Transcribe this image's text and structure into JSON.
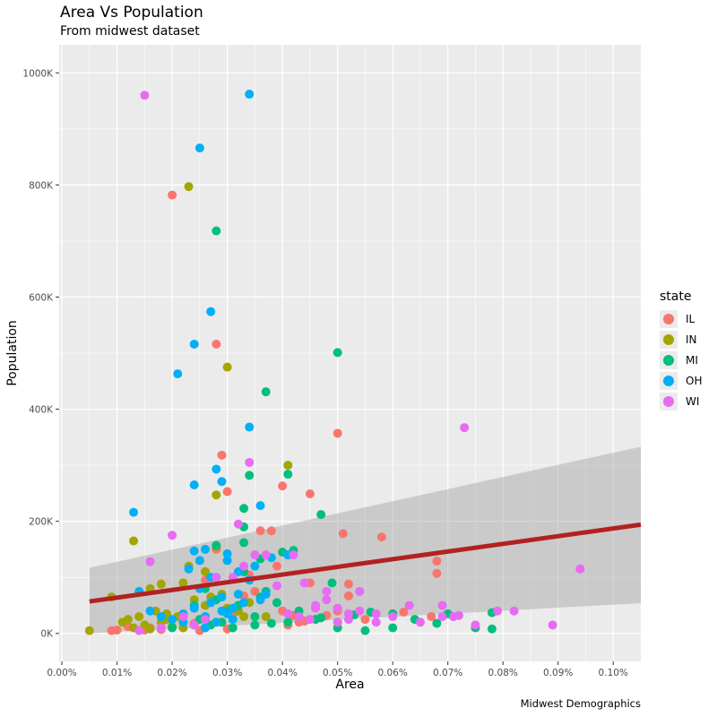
{
  "chart_data": {
    "type": "scatter",
    "title": "Area Vs Population",
    "subtitle": "From midwest dataset",
    "caption": "Midwest Demographics",
    "xlabel": "Area",
    "ylabel": "Population",
    "xlim": [
      -0.0005,
      0.105
    ],
    "ylim": [
      -50000,
      1050000
    ],
    "x_ticks": [
      0,
      0.01,
      0.02,
      0.03,
      0.04,
      0.05,
      0.06,
      0.07,
      0.08,
      0.09,
      0.1
    ],
    "x_tick_labels": [
      "0.00%",
      "0.01%",
      "0.02%",
      "0.03%",
      "0.04%",
      "0.05%",
      "0.06%",
      "0.07%",
      "0.08%",
      "0.09%",
      "0.10%"
    ],
    "y_ticks": [
      0,
      200000,
      400000,
      600000,
      800000,
      1000000
    ],
    "y_tick_labels": [
      "0K",
      "200K",
      "400K",
      "600K",
      "800K",
      "1000K"
    ],
    "grid": true,
    "legend": {
      "title": "state",
      "position": "right",
      "entries": [
        {
          "name": "IL",
          "color": "#F8766D"
        },
        {
          "name": "IN",
          "color": "#A3A500"
        },
        {
          "name": "MI",
          "color": "#00BF7D"
        },
        {
          "name": "OH",
          "color": "#00B0F6"
        },
        {
          "name": "WI",
          "color": "#E76BF3"
        }
      ]
    },
    "smooth": {
      "method": "linear",
      "color": "#B22222",
      "band_color": "#999999",
      "x": [
        0.005,
        0.105
      ],
      "y": [
        57000,
        194000
      ],
      "band_lower": [
        0,
        54000
      ],
      "band_upper": [
        117000,
        333000
      ]
    },
    "series": [
      {
        "name": "IL",
        "x": [
          0.02,
          0.028,
          0.05,
          0.029,
          0.045,
          0.04,
          0.051,
          0.058,
          0.036,
          0.038,
          0.068,
          0.068,
          0.03,
          0.052,
          0.052,
          0.042,
          0.026,
          0.028,
          0.034,
          0.039,
          0.035,
          0.033,
          0.04,
          0.048,
          0.067,
          0.062,
          0.022,
          0.03,
          0.025,
          0.044,
          0.046,
          0.047,
          0.016,
          0.01,
          0.009,
          0.018,
          0.012,
          0.015,
          0.031,
          0.036,
          0.045,
          0.024,
          0.041,
          0.043,
          0.055,
          0.05
        ],
        "y": [
          782000,
          516000,
          357000,
          318000,
          249000,
          263000,
          178000,
          172000,
          183000,
          183000,
          129000,
          107000,
          253000,
          88000,
          67000,
          32000,
          95000,
          150000,
          104000,
          120000,
          75000,
          67000,
          40000,
          32000,
          30000,
          38000,
          20000,
          8000,
          5000,
          22000,
          25000,
          28000,
          10000,
          6000,
          5000,
          7000,
          12000,
          6000,
          35000,
          60000,
          90000,
          18000,
          15000,
          20000,
          25000,
          40000
        ]
      },
      {
        "name": "IN",
        "x": [
          0.023,
          0.03,
          0.041,
          0.028,
          0.013,
          0.028,
          0.025,
          0.023,
          0.026,
          0.022,
          0.018,
          0.016,
          0.009,
          0.011,
          0.012,
          0.005,
          0.014,
          0.017,
          0.019,
          0.021,
          0.024,
          0.027,
          0.03,
          0.032,
          0.034,
          0.037,
          0.022,
          0.02,
          0.018,
          0.015,
          0.013,
          0.016,
          0.019,
          0.026,
          0.029,
          0.033
        ],
        "y": [
          797000,
          475000,
          300000,
          247000,
          165000,
          155000,
          130000,
          120000,
          110000,
          90000,
          88000,
          80000,
          65000,
          20000,
          25000,
          5000,
          30000,
          40000,
          35000,
          30000,
          60000,
          65000,
          45000,
          40000,
          55000,
          30000,
          10000,
          12000,
          20000,
          15000,
          10000,
          8000,
          25000,
          50000,
          70000,
          30000
        ]
      },
      {
        "name": "MI",
        "x": [
          0.034,
          0.041,
          0.047,
          0.028,
          0.033,
          0.05,
          0.037,
          0.028,
          0.033,
          0.033,
          0.036,
          0.04,
          0.042,
          0.049,
          0.068,
          0.075,
          0.078,
          0.078,
          0.07,
          0.064,
          0.06,
          0.056,
          0.053,
          0.05,
          0.046,
          0.041,
          0.038,
          0.035,
          0.031,
          0.028,
          0.026,
          0.024,
          0.022,
          0.02,
          0.06,
          0.055,
          0.05,
          0.047,
          0.043,
          0.039,
          0.036,
          0.032,
          0.029,
          0.027,
          0.033,
          0.037,
          0.025,
          0.03,
          0.035
        ],
        "y": [
          282000,
          284000,
          212000,
          718000,
          223000,
          501000,
          431000,
          157000,
          190000,
          162000,
          133000,
          145000,
          148000,
          90000,
          18000,
          10000,
          8000,
          37000,
          35000,
          25000,
          10000,
          38000,
          33000,
          10000,
          25000,
          20000,
          18000,
          15000,
          10000,
          60000,
          80000,
          50000,
          30000,
          10000,
          35000,
          5000,
          20000,
          28000,
          40000,
          55000,
          65000,
          50000,
          20000,
          15000,
          110000,
          75000,
          25000,
          40000,
          30000
        ]
      },
      {
        "name": "OH",
        "x": [
          0.034,
          0.025,
          0.027,
          0.024,
          0.021,
          0.034,
          0.036,
          0.028,
          0.029,
          0.024,
          0.013,
          0.024,
          0.026,
          0.023,
          0.025,
          0.03,
          0.032,
          0.035,
          0.038,
          0.041,
          0.014,
          0.016,
          0.018,
          0.02,
          0.022,
          0.027,
          0.029,
          0.031,
          0.034,
          0.037,
          0.024,
          0.026,
          0.028,
          0.03,
          0.025,
          0.032,
          0.027,
          0.022,
          0.024,
          0.029,
          0.033,
          0.036,
          0.026,
          0.031,
          0.03
        ],
        "y": [
          962000,
          866000,
          574000,
          516000,
          463000,
          368000,
          228000,
          293000,
          271000,
          265000,
          216000,
          147000,
          150000,
          115000,
          130000,
          142000,
          110000,
          120000,
          135000,
          140000,
          75000,
          40000,
          30000,
          25000,
          35000,
          55000,
          65000,
          45000,
          95000,
          70000,
          45000,
          30000,
          20000,
          35000,
          80000,
          70000,
          100000,
          20000,
          15000,
          40000,
          55000,
          60000,
          10000,
          25000,
          130000
        ]
      },
      {
        "name": "WI",
        "x": [
          0.015,
          0.073,
          0.034,
          0.032,
          0.02,
          0.016,
          0.094,
          0.089,
          0.082,
          0.079,
          0.075,
          0.071,
          0.069,
          0.065,
          0.063,
          0.06,
          0.057,
          0.054,
          0.052,
          0.05,
          0.048,
          0.046,
          0.044,
          0.042,
          0.039,
          0.037,
          0.035,
          0.033,
          0.031,
          0.028,
          0.026,
          0.024,
          0.022,
          0.018,
          0.014,
          0.041,
          0.043,
          0.05,
          0.054,
          0.048,
          0.045,
          0.072,
          0.069,
          0.057,
          0.046,
          0.052
        ],
        "y": [
          960000,
          367000,
          305000,
          195000,
          175000,
          128000,
          115000,
          15000,
          40000,
          40000,
          15000,
          30000,
          50000,
          20000,
          50000,
          30000,
          20000,
          40000,
          35000,
          45000,
          60000,
          45000,
          90000,
          140000,
          85000,
          140000,
          140000,
          120000,
          100000,
          100000,
          25000,
          15000,
          30000,
          10000,
          5000,
          35000,
          30000,
          20000,
          75000,
          75000,
          25000,
          32000,
          30000,
          35000,
          50000,
          25000
        ]
      }
    ]
  }
}
